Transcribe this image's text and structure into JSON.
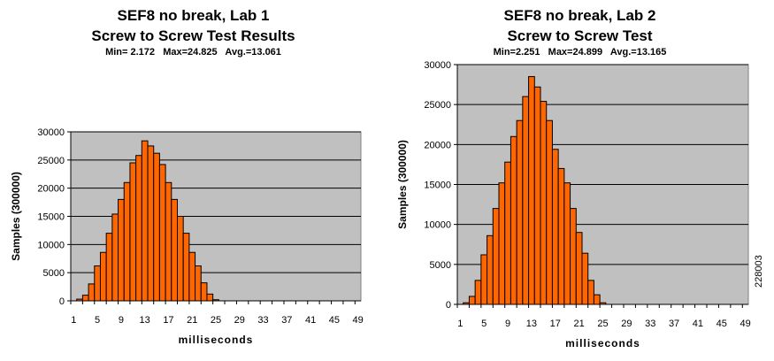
{
  "colors": {
    "plot_bg": "#c0c0c0",
    "bar_fill": "#ff6600",
    "bar_stroke": "#000000",
    "grid": "#000000"
  },
  "side_id": "228003",
  "chart_data": [
    {
      "type": "bar",
      "title": [
        "SEF8 no break, Lab 1",
        "Screw to Screw Test Results"
      ],
      "subtitle": "Min= 2.172   Max=24.825   Avg.=13.061",
      "xlabel": "milliseconds",
      "ylabel": "Samples (300000)",
      "ylim": [
        0,
        30000
      ],
      "yticks": [
        0,
        5000,
        10000,
        15000,
        20000,
        25000,
        30000
      ],
      "xtick_labels": [
        "1",
        "5",
        "9",
        "13",
        "17",
        "21",
        "25",
        "29",
        "33",
        "37",
        "41",
        "45",
        "49"
      ],
      "grid": true,
      "x": [
        1,
        2,
        3,
        4,
        5,
        6,
        7,
        8,
        9,
        10,
        11,
        12,
        13,
        14,
        15,
        16,
        17,
        18,
        19,
        20,
        21,
        22,
        23,
        24,
        25,
        26,
        27,
        28,
        29,
        30,
        31,
        32,
        33,
        34,
        35,
        36,
        37,
        38,
        39,
        40,
        41,
        42,
        43,
        44,
        45,
        46,
        47,
        48,
        49
      ],
      "values": [
        0,
        300,
        1000,
        3000,
        6200,
        8600,
        12000,
        15400,
        18000,
        21000,
        24500,
        25800,
        28400,
        27500,
        26200,
        24200,
        21000,
        18000,
        15000,
        12000,
        8600,
        6200,
        3200,
        1200,
        200,
        0,
        0,
        0,
        0,
        0,
        0,
        0,
        0,
        0,
        0,
        0,
        0,
        0,
        0,
        0,
        0,
        0,
        0,
        0,
        0,
        0,
        0,
        0,
        0
      ]
    },
    {
      "type": "bar",
      "title": [
        "SEF8 no break, Lab 2",
        "Screw to Screw Test"
      ],
      "subtitle": "Min=2.251   Max=24.899   Avg.=13.165",
      "xlabel": "milliseconds",
      "ylabel": "Samples (300000)",
      "ylim": [
        0,
        30000
      ],
      "yticks": [
        0,
        5000,
        10000,
        15000,
        20000,
        25000,
        30000
      ],
      "xtick_labels": [
        "1",
        "5",
        "9",
        "13",
        "17",
        "21",
        "25",
        "29",
        "33",
        "37",
        "41",
        "45",
        "49"
      ],
      "grid": true,
      "x": [
        1,
        2,
        3,
        4,
        5,
        6,
        7,
        8,
        9,
        10,
        11,
        12,
        13,
        14,
        15,
        16,
        17,
        18,
        19,
        20,
        21,
        22,
        23,
        24,
        25,
        26,
        27,
        28,
        29,
        30,
        31,
        32,
        33,
        34,
        35,
        36,
        37,
        38,
        39,
        40,
        41,
        42,
        43,
        44,
        45,
        46,
        47,
        48,
        49
      ],
      "values": [
        0,
        200,
        1000,
        3000,
        6200,
        8600,
        12000,
        15200,
        17800,
        21000,
        23000,
        26000,
        28500,
        27200,
        25400,
        23000,
        19400,
        17000,
        15200,
        12000,
        9000,
        6400,
        3000,
        1200,
        200,
        0,
        0,
        0,
        0,
        0,
        0,
        0,
        0,
        0,
        0,
        0,
        0,
        0,
        0,
        0,
        0,
        0,
        0,
        0,
        0,
        0,
        0,
        0,
        0
      ]
    }
  ]
}
